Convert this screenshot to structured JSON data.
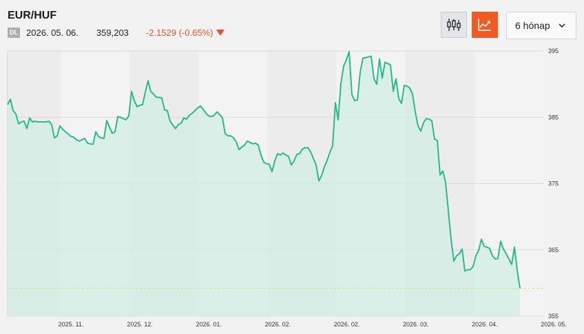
{
  "header": {
    "pair": "EUR/HUF",
    "badge": "DL",
    "date": "2026. 05. 06.",
    "price": "359,203",
    "change": "-2.1529 (-0.65%)",
    "change_color": "#e8522a"
  },
  "controls": {
    "candle_icon": "candlestick-icon",
    "line_icon": "line-chart-icon",
    "period_label": "6 hónap",
    "accent_color": "#f25a22"
  },
  "chart_data": {
    "type": "area",
    "line_color": "#2ab88f",
    "fill_color": "#d3ede4",
    "ylim": [
      355,
      395
    ],
    "yticks": [
      355,
      365,
      375,
      385,
      395
    ],
    "xlim": [
      0,
      778
    ],
    "xtick_labels": [
      "2025. 11.",
      "2025. 12.",
      "2026. 01.",
      "2026. 02.",
      "2026. 02.",
      "2026. 03.",
      "2026. 04.",
      "2026. 05."
    ],
    "reference_line": 359.2,
    "grid": true,
    "points": [
      [
        0,
        386.9
      ],
      [
        4,
        387.7
      ],
      [
        8,
        386.0
      ],
      [
        12,
        385.5
      ],
      [
        16,
        384.0
      ],
      [
        20,
        384.3
      ],
      [
        24,
        384.4
      ],
      [
        28,
        383.3
      ],
      [
        32,
        384.9
      ],
      [
        36,
        384.3
      ],
      [
        40,
        384.4
      ],
      [
        44,
        384.3
      ],
      [
        48,
        384.3
      ],
      [
        52,
        384.3
      ],
      [
        56,
        384.3
      ],
      [
        60,
        384.4
      ],
      [
        64,
        383.9
      ],
      [
        68,
        381.9
      ],
      [
        72,
        382.2
      ],
      [
        76,
        383.7
      ],
      [
        80,
        383.2
      ],
      [
        84,
        382.8
      ],
      [
        88,
        382.5
      ],
      [
        92,
        382.1
      ],
      [
        96,
        382.0
      ],
      [
        100,
        381.6
      ],
      [
        104,
        381.4
      ],
      [
        108,
        381.6
      ],
      [
        112,
        381.8
      ],
      [
        116,
        381.1
      ],
      [
        120,
        381.0
      ],
      [
        124,
        380.9
      ],
      [
        128,
        382.8
      ],
      [
        132,
        382.1
      ],
      [
        136,
        381.9
      ],
      [
        140,
        381.8
      ],
      [
        144,
        384.5
      ],
      [
        148,
        383.5
      ],
      [
        152,
        382.6
      ],
      [
        156,
        382.8
      ],
      [
        160,
        385.1
      ],
      [
        164,
        385.0
      ],
      [
        168,
        384.8
      ],
      [
        172,
        384.6
      ],
      [
        176,
        385.2
      ],
      [
        180,
        388.9
      ],
      [
        184,
        387.5
      ],
      [
        188,
        386.6
      ],
      [
        192,
        386.8
      ],
      [
        196,
        386.9
      ],
      [
        200,
        388.8
      ],
      [
        204,
        390.5
      ],
      [
        208,
        388.9
      ],
      [
        212,
        388.5
      ],
      [
        216,
        388.0
      ],
      [
        220,
        388.0
      ],
      [
        224,
        387.9
      ],
      [
        228,
        386.1
      ],
      [
        232,
        386.0
      ],
      [
        236,
        384.4
      ],
      [
        240,
        383.8
      ],
      [
        244,
        383.3
      ],
      [
        248,
        383.9
      ],
      [
        252,
        384.1
      ],
      [
        256,
        384.9
      ],
      [
        260,
        384.7
      ],
      [
        264,
        385.3
      ],
      [
        268,
        385.6
      ],
      [
        272,
        386.0
      ],
      [
        276,
        386.4
      ],
      [
        280,
        386.7
      ],
      [
        284,
        386.2
      ],
      [
        288,
        385.6
      ],
      [
        292,
        385.2
      ],
      [
        296,
        385.1
      ],
      [
        300,
        385.3
      ],
      [
        304,
        385.8
      ],
      [
        308,
        385.4
      ],
      [
        312,
        384.9
      ],
      [
        316,
        382.5
      ],
      [
        320,
        382.2
      ],
      [
        324,
        382.2
      ],
      [
        328,
        381.9
      ],
      [
        332,
        381.3
      ],
      [
        336,
        380.1
      ],
      [
        340,
        380.5
      ],
      [
        344,
        380.8
      ],
      [
        348,
        381.4
      ],
      [
        352,
        381.2
      ],
      [
        356,
        381.0
      ],
      [
        360,
        381.1
      ],
      [
        364,
        380.8
      ],
      [
        368,
        379.3
      ],
      [
        372,
        378.2
      ],
      [
        376,
        378.0
      ],
      [
        380,
        377.9
      ],
      [
        384,
        376.8
      ],
      [
        388,
        378.4
      ],
      [
        392,
        379.5
      ],
      [
        396,
        379.3
      ],
      [
        400,
        379.6
      ],
      [
        404,
        379.3
      ],
      [
        408,
        379.1
      ],
      [
        412,
        377.8
      ],
      [
        416,
        378.4
      ],
      [
        420,
        379.4
      ],
      [
        424,
        379.5
      ],
      [
        428,
        380.2
      ],
      [
        432,
        380.4
      ],
      [
        436,
        380.4
      ],
      [
        440,
        379.8
      ],
      [
        444,
        378.8
      ],
      [
        448,
        377.8
      ],
      [
        452,
        375.4
      ],
      [
        456,
        376.2
      ],
      [
        460,
        377.5
      ],
      [
        464,
        378.5
      ],
      [
        468,
        379.7
      ],
      [
        472,
        380.7
      ],
      [
        476,
        387.2
      ],
      [
        480,
        384.6
      ],
      [
        484,
        390.1
      ],
      [
        488,
        392.7
      ],
      [
        492,
        393.7
      ],
      [
        496,
        394.9
      ],
      [
        500,
        388.4
      ],
      [
        504,
        387.5
      ],
      [
        508,
        387.6
      ],
      [
        512,
        391.8
      ],
      [
        516,
        393.9
      ],
      [
        520,
        394.0
      ],
      [
        524,
        394.1
      ],
      [
        528,
        394.2
      ],
      [
        532,
        390.8
      ],
      [
        536,
        390.0
      ],
      [
        540,
        393.8
      ],
      [
        544,
        390.9
      ],
      [
        548,
        393.3
      ],
      [
        552,
        393.1
      ],
      [
        556,
        392.9
      ],
      [
        560,
        388.9
      ],
      [
        564,
        390.8
      ],
      [
        568,
        387.8
      ],
      [
        572,
        387.1
      ],
      [
        576,
        389.8
      ],
      [
        580,
        389.7
      ],
      [
        584,
        389.4
      ],
      [
        588,
        388.5
      ],
      [
        592,
        385.8
      ],
      [
        596,
        383.7
      ],
      [
        600,
        382.9
      ],
      [
        604,
        384.2
      ],
      [
        608,
        384.8
      ],
      [
        612,
        384.7
      ],
      [
        616,
        384.5
      ],
      [
        620,
        381.7
      ],
      [
        624,
        381.5
      ],
      [
        628,
        376.3
      ],
      [
        632,
        376.9
      ],
      [
        636,
        375.2
      ],
      [
        640,
        370.9
      ],
      [
        644,
        366.6
      ],
      [
        648,
        363.3
      ],
      [
        652,
        364.1
      ],
      [
        656,
        364.4
      ],
      [
        660,
        365.1
      ],
      [
        664,
        361.8
      ],
      [
        668,
        362.0
      ],
      [
        672,
        362.0
      ],
      [
        676,
        362.5
      ],
      [
        680,
        364.1
      ],
      [
        684,
        364.9
      ],
      [
        688,
        366.6
      ],
      [
        692,
        365.5
      ],
      [
        696,
        365.4
      ],
      [
        700,
        365.2
      ],
      [
        704,
        364.1
      ],
      [
        708,
        363.6
      ],
      [
        712,
        363.7
      ],
      [
        716,
        366.3
      ],
      [
        720,
        365.1
      ],
      [
        724,
        364.4
      ],
      [
        728,
        363.6
      ],
      [
        732,
        362.8
      ],
      [
        736,
        365.4
      ],
      [
        740,
        361.9
      ],
      [
        744,
        359.2
      ]
    ]
  }
}
